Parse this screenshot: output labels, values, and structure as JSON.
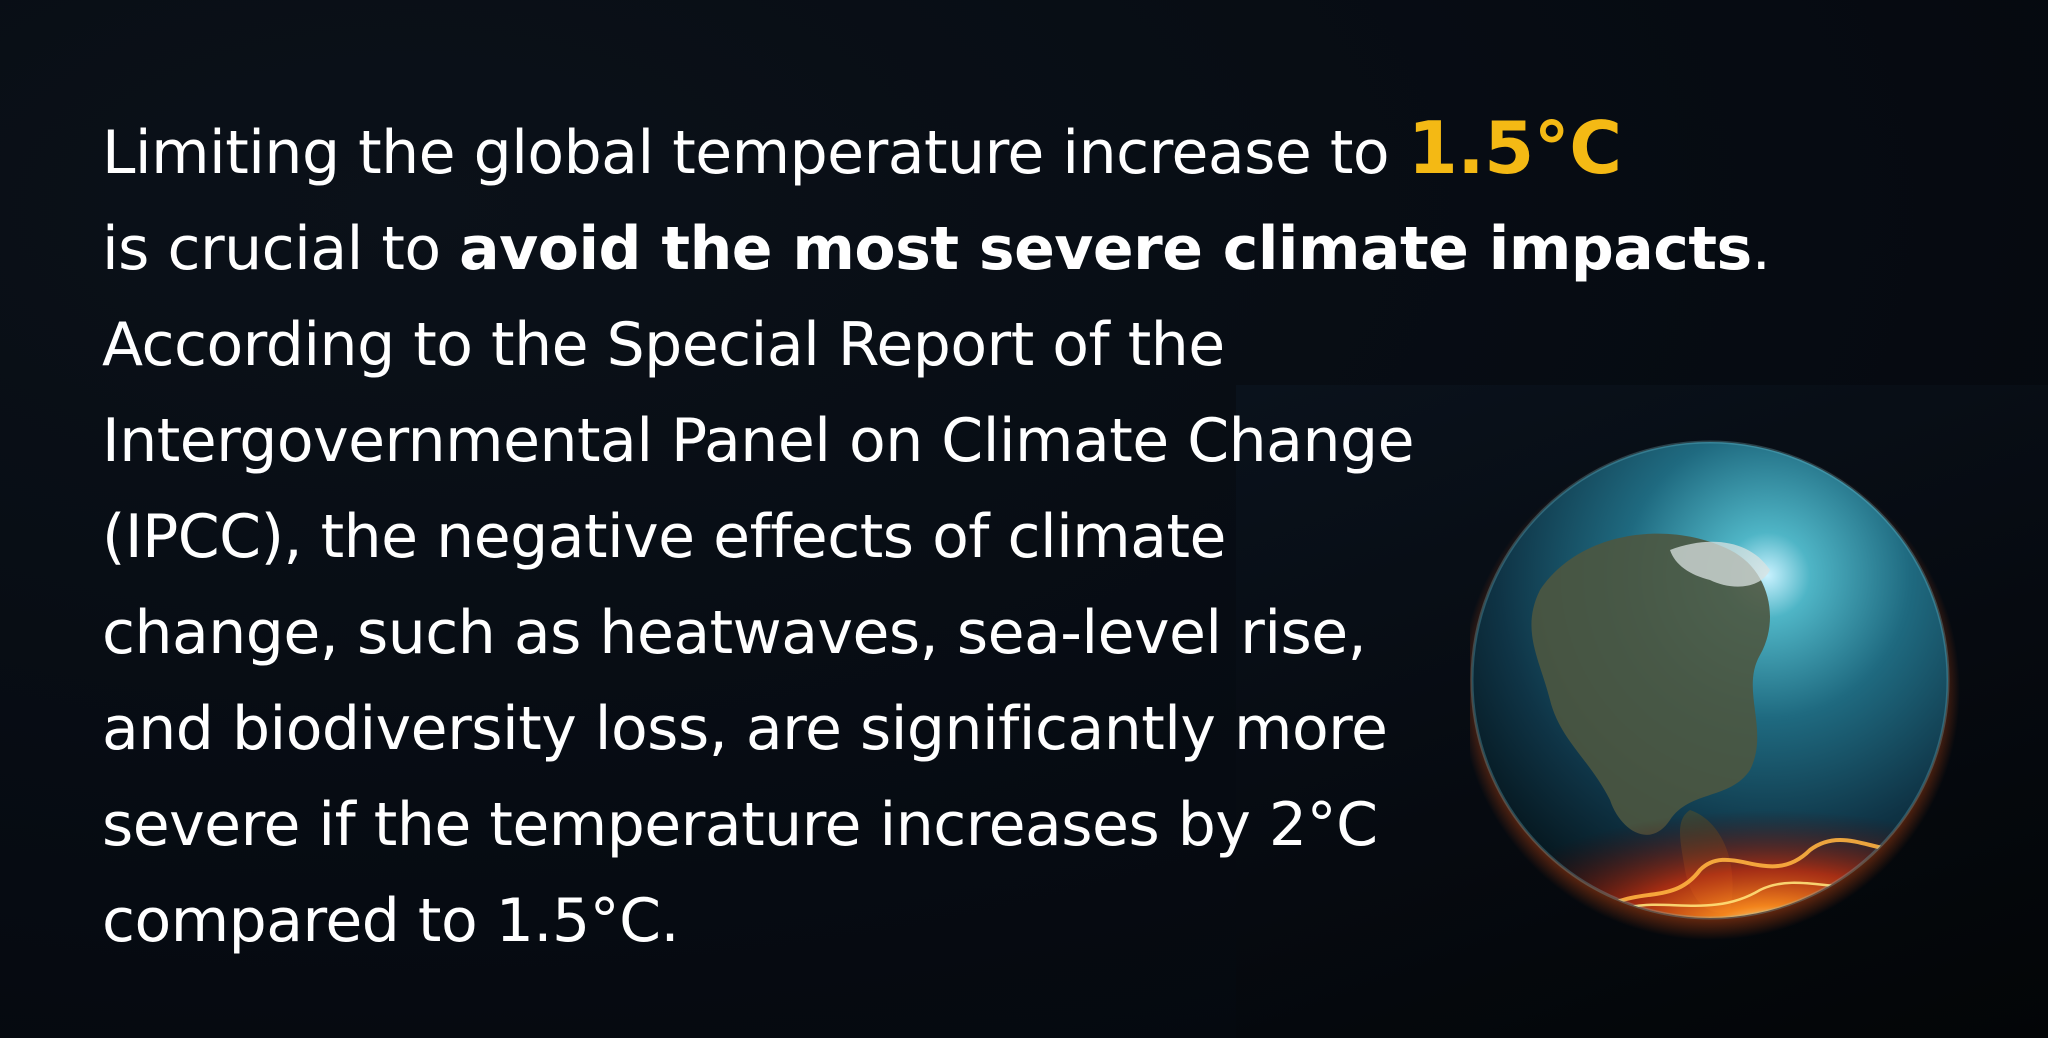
{
  "paragraph": {
    "line1_text": "Limiting the global temperature increase to ",
    "line1_highlight": "1.5°C",
    "line2_text": "is crucial to ",
    "line2_bold": "avoid the most severe climate impacts",
    "line2_end": ".",
    "line3": "According to the Special Report of the",
    "line4": "Intergovernmental Panel on Climate Change",
    "line5": "(IPCC), the negative effects of climate",
    "line6": "change, such as heatwaves, sea-level rise,",
    "line7": "and biodiversity loss, are significantly more",
    "line8": "severe if the temperature increases by 2°C",
    "line9": "compared to 1.5°C."
  },
  "colors": {
    "background": "#060b12",
    "text": "#ffffff",
    "highlight": "#f4b914"
  },
  "image": {
    "subject": "burning-earth-globe"
  }
}
